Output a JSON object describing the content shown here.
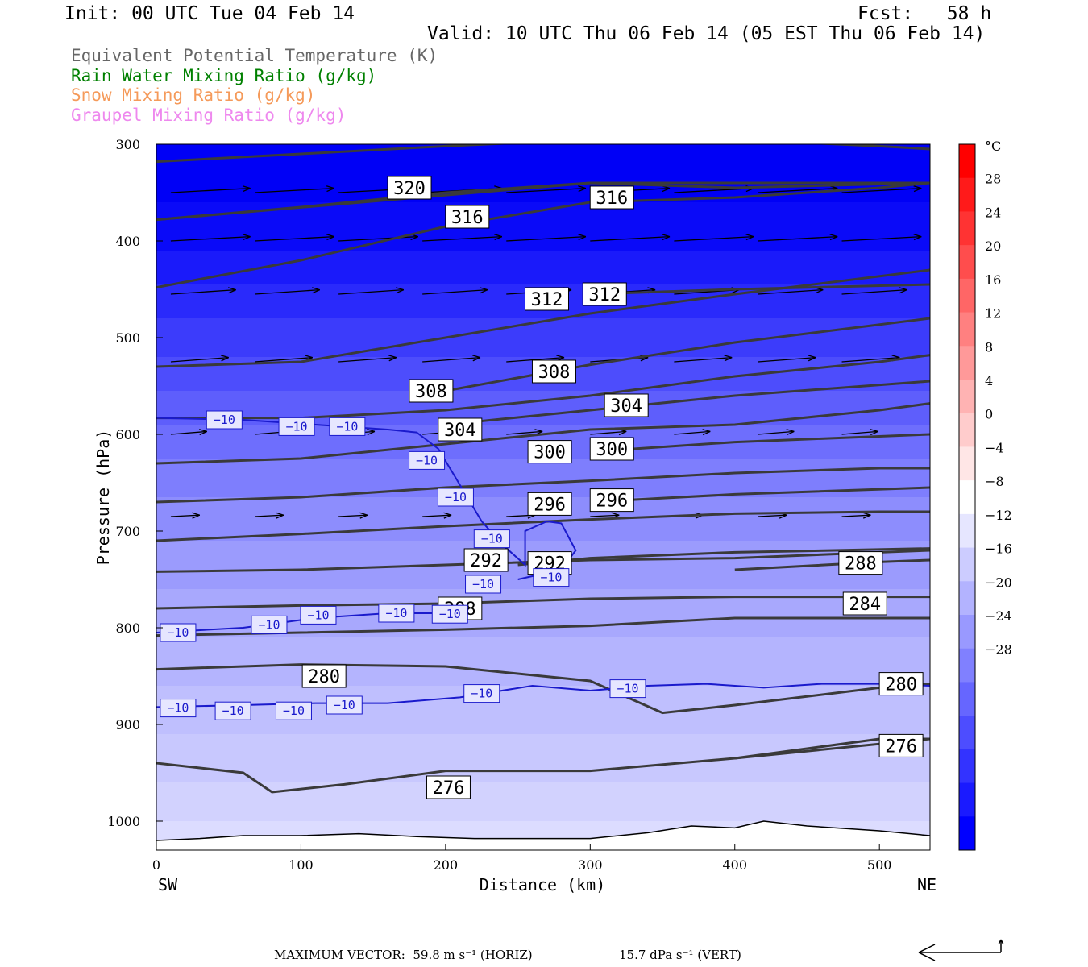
{
  "header": {
    "init": "Init: 00 UTC Tue 04 Feb 14",
    "fcst": "Fcst:   58 h",
    "valid": "Valid: 10 UTC Thu 06 Feb 14 (05 EST Thu 06 Feb 14)"
  },
  "legend": [
    {
      "text": "Equivalent Potential Temperature (K)",
      "color": "#666666"
    },
    {
      "text": "Rain Water Mixing Ratio (g/kg)",
      "color": "#008000"
    },
    {
      "text": "Snow Mixing Ratio (g/kg)",
      "color": "#f59a5a"
    },
    {
      "text": "Graupel Mixing Ratio (g/kg)",
      "color": "#ee88ee"
    }
  ],
  "footer": {
    "max_vector": "MAXIMUM VECTOR:  59.8 m s⁻¹ (HORIZ)",
    "vert": "15.7 dPa s⁻¹ (VERT)"
  },
  "chart_data": {
    "type": "heatmap",
    "xlabel": "Distance (km)",
    "ylabel": "Pressure (hPa)",
    "xlim": [
      0,
      535
    ],
    "ylim_pressure": [
      1030,
      300
    ],
    "x_ticks": [
      0,
      100,
      200,
      300,
      400,
      500
    ],
    "y_ticks": [
      300,
      400,
      500,
      600,
      700,
      800,
      900,
      1000
    ],
    "x_endpoints": {
      "left": "SW",
      "right": "NE"
    },
    "colorbar": {
      "unit": "°C",
      "ticks": [
        28,
        24,
        20,
        16,
        12,
        8,
        4,
        0,
        -4,
        -8,
        -12,
        -16,
        -20,
        -24,
        -28
      ],
      "colors": [
        "#0000ff",
        "#1a1aff",
        "#3333ff",
        "#4d4dff",
        "#6666ff",
        "#8080ff",
        "#9999ff",
        "#b3b3ff",
        "#ccccff",
        "#e6e6ff",
        "#ffffff",
        "#ffe6e6",
        "#ffcccc",
        "#ffb3b3",
        "#ff9999",
        "#ff8080",
        "#ff6666",
        "#ff4d4d",
        "#ff3333",
        "#ff1a1a",
        "#ff0000"
      ]
    },
    "theta_e_contours": [
      {
        "label": "320",
        "points": [
          [
            0,
            318
          ],
          [
            100,
            310
          ],
          [
            200,
            302
          ],
          [
            300,
            295
          ],
          [
            400,
            295
          ],
          [
            500,
            302
          ],
          [
            535,
            305
          ]
        ],
        "label_pos": [
          175,
          345
        ]
      },
      {
        "label": "316",
        "points": [
          [
            0,
            378
          ],
          [
            100,
            365
          ],
          [
            200,
            350
          ],
          [
            300,
            340
          ],
          [
            400,
            345
          ],
          [
            535,
            340
          ]
        ],
        "label_pos": [
          215,
          375
        ]
      },
      {
        "label": "316",
        "points": [
          [
            0,
            378
          ],
          [
            300,
            340
          ],
          [
            535,
            340
          ]
        ],
        "label_pos": [
          315,
          355
        ]
      },
      {
        "label": "312",
        "points": [
          [
            0,
            448
          ],
          [
            100,
            420
          ],
          [
            200,
            385
          ],
          [
            300,
            360
          ],
          [
            400,
            355
          ],
          [
            500,
            345
          ],
          [
            535,
            340
          ]
        ],
        "label_pos": [
          270,
          460
        ]
      },
      {
        "label": "312",
        "points": [
          [
            300,
            455
          ],
          [
            400,
            450
          ],
          [
            535,
            445
          ]
        ],
        "label_pos": [
          310,
          455
        ]
      },
      {
        "label": "308",
        "points": [
          [
            0,
            530
          ],
          [
            100,
            525
          ],
          [
            200,
            500
          ],
          [
            300,
            475
          ],
          [
            400,
            455
          ],
          [
            535,
            430
          ]
        ],
        "label_pos": [
          190,
          555
        ]
      },
      {
        "label": "308",
        "points": [
          [
            200,
            555
          ],
          [
            300,
            528
          ],
          [
            400,
            505
          ],
          [
            535,
            480
          ]
        ],
        "label_pos": [
          275,
          535
        ]
      },
      {
        "label": "304",
        "points": [
          [
            0,
            583
          ],
          [
            100,
            583
          ],
          [
            200,
            575
          ],
          [
            300,
            560
          ],
          [
            400,
            540
          ],
          [
            500,
            525
          ],
          [
            535,
            518
          ]
        ],
        "label_pos": [
          210,
          595
        ]
      },
      {
        "label": "304",
        "points": [
          [
            200,
            590
          ],
          [
            300,
            575
          ],
          [
            400,
            560
          ],
          [
            535,
            545
          ]
        ],
        "label_pos": [
          325,
          570
        ]
      },
      {
        "label": "300",
        "points": [
          [
            0,
            630
          ],
          [
            100,
            625
          ],
          [
            200,
            610
          ],
          [
            300,
            595
          ],
          [
            400,
            590
          ],
          [
            500,
            575
          ],
          [
            535,
            568
          ]
        ],
        "label_pos": [
          272,
          618
        ]
      },
      {
        "label": "300",
        "points": [
          [
            300,
            618
          ],
          [
            400,
            608
          ],
          [
            535,
            600
          ]
        ],
        "label_pos": [
          315,
          615
        ]
      },
      {
        "label": "296",
        "points": [
          [
            0,
            670
          ],
          [
            100,
            665
          ],
          [
            200,
            655
          ],
          [
            300,
            648
          ],
          [
            400,
            640
          ],
          [
            500,
            635
          ],
          [
            535,
            635
          ]
        ],
        "label_pos": [
          272,
          672
        ]
      },
      {
        "label": "296",
        "points": [
          [
            300,
            670
          ],
          [
            400,
            662
          ],
          [
            535,
            655
          ]
        ],
        "label_pos": [
          315,
          668
        ]
      },
      {
        "label": "292",
        "points": [
          [
            0,
            710
          ],
          [
            100,
            703
          ],
          [
            200,
            695
          ],
          [
            300,
            688
          ],
          [
            400,
            682
          ],
          [
            500,
            680
          ],
          [
            535,
            680
          ]
        ],
        "label_pos": [
          228,
          730
        ]
      },
      {
        "label": "292",
        "points": [
          [
            250,
            735
          ],
          [
            300,
            728
          ],
          [
            400,
            722
          ],
          [
            535,
            718
          ]
        ],
        "label_pos": [
          272,
          733
        ]
      },
      {
        "label": "288",
        "points": [
          [
            0,
            742
          ],
          [
            100,
            740
          ],
          [
            200,
            735
          ],
          [
            300,
            730
          ],
          [
            400,
            728
          ],
          [
            500,
            722
          ],
          [
            535,
            720
          ]
        ],
        "label_pos": [
          210,
          780
        ]
      },
      {
        "label": "288",
        "points": [
          [
            400,
            740
          ],
          [
            500,
            732
          ],
          [
            535,
            730
          ]
        ],
        "label_pos": [
          487,
          733
        ]
      },
      {
        "label": "284",
        "points": [
          [
            0,
            780
          ],
          [
            100,
            777
          ],
          [
            200,
            775
          ],
          [
            300,
            770
          ],
          [
            400,
            768
          ],
          [
            500,
            768
          ],
          [
            535,
            768
          ]
        ],
        "label_pos": [
          490,
          775
        ]
      },
      {
        "label": "280",
        "points": [
          [
            0,
            808
          ],
          [
            100,
            805
          ],
          [
            200,
            802
          ],
          [
            300,
            798
          ],
          [
            400,
            790
          ],
          [
            500,
            790
          ],
          [
            535,
            790
          ]
        ],
        "label_pos": [
          116,
          850
        ]
      },
      {
        "label": "280",
        "points": [
          [
            0,
            843
          ],
          [
            100,
            838
          ],
          [
            200,
            840
          ],
          [
            300,
            855
          ],
          [
            350,
            888
          ],
          [
            400,
            880
          ],
          [
            500,
            862
          ],
          [
            535,
            858
          ]
        ],
        "label_pos": [
          515,
          858
        ]
      },
      {
        "label": "276",
        "points": [
          [
            0,
            940
          ],
          [
            60,
            950
          ],
          [
            80,
            970
          ],
          [
            130,
            962
          ],
          [
            200,
            948
          ],
          [
            300,
            948
          ],
          [
            400,
            935
          ],
          [
            500,
            915
          ],
          [
            535,
            915
          ]
        ],
        "label_pos": [
          202,
          965
        ]
      },
      {
        "label": "276",
        "points": [
          [
            400,
            935
          ],
          [
            535,
            915
          ]
        ],
        "label_pos": [
          515,
          922
        ]
      }
    ],
    "minus10_contour_labels": [
      {
        "label": "−10",
        "pos": [
          47,
          585
        ]
      },
      {
        "label": "−10",
        "pos": [
          97,
          592
        ]
      },
      {
        "label": "−10",
        "pos": [
          132,
          592
        ]
      },
      {
        "label": "−10",
        "pos": [
          187,
          627
        ]
      },
      {
        "label": "−10",
        "pos": [
          207,
          665
        ]
      },
      {
        "label": "−10",
        "pos": [
          232,
          708
        ]
      },
      {
        "label": "−10",
        "pos": [
          226,
          755
        ]
      },
      {
        "label": "−10",
        "pos": [
          273,
          748
        ]
      },
      {
        "label": "−10",
        "pos": [
          15,
          805
        ]
      },
      {
        "label": "−10",
        "pos": [
          78,
          797
        ]
      },
      {
        "label": "−10",
        "pos": [
          112,
          787
        ]
      },
      {
        "label": "−10",
        "pos": [
          166,
          785
        ]
      },
      {
        "label": "−10",
        "pos": [
          203,
          786
        ]
      },
      {
        "label": "−10",
        "pos": [
          15,
          883
        ]
      },
      {
        "label": "−10",
        "pos": [
          53,
          886
        ]
      },
      {
        "label": "−10",
        "pos": [
          95,
          886
        ]
      },
      {
        "label": "−10",
        "pos": [
          130,
          880
        ]
      },
      {
        "label": "−10",
        "pos": [
          225,
          868
        ]
      },
      {
        "label": "−10",
        "pos": [
          326,
          863
        ]
      }
    ]
  }
}
